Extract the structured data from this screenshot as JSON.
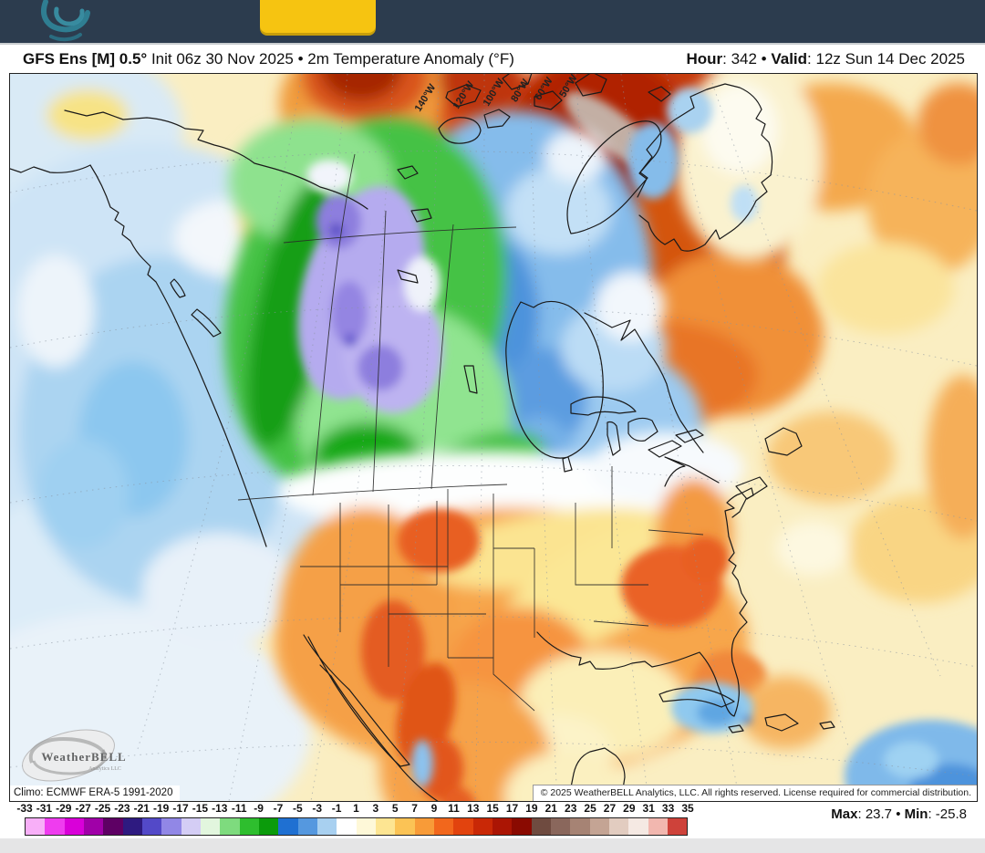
{
  "navbar": {
    "bg_color": "#2c3c4e",
    "button_color": "#f6c411",
    "logo": "weatherbell-swirl-icon"
  },
  "header": {
    "title_bold": "GFS Ens [M] 0.5°",
    "title_rest": " Init 06z 30 Nov 2025 • 2m Temperature Anomaly (°F)",
    "hour_label": "Hour",
    "hour_sep": ": ",
    "hour_value": "342",
    "bullet": " • ",
    "valid_label": "Valid",
    "valid_sep": ": ",
    "valid_value": "12z Sun 14 Dec 2025"
  },
  "map": {
    "lon_labels": [
      "140°W",
      "120°W",
      "100°W",
      "80°W",
      "60°W",
      "50°W"
    ],
    "watermark_title": "WeatherBELL",
    "watermark_sub": "Analytics LLC",
    "climo_text": "Climo: ECMWF ERA-5 1991-2020",
    "copyright_text": "© 2025 WeatherBELL Analytics, LLC. All rights reserved. License required for commercial distribution."
  },
  "colorbar": {
    "tick_labels": [
      "-33",
      "-31",
      "-29",
      "-27",
      "-25",
      "-23",
      "-21",
      "-19",
      "-17",
      "-15",
      "-13",
      "-11",
      "-9",
      "-7",
      "-5",
      "-3",
      "-1",
      "1",
      "3",
      "5",
      "7",
      "9",
      "11",
      "13",
      "15",
      "17",
      "19",
      "21",
      "23",
      "25",
      "27",
      "29",
      "31",
      "33",
      "35"
    ],
    "cell_colors": [
      "#f8aff8",
      "#ef3cef",
      "#d900d9",
      "#a000a8",
      "#5e0064",
      "#2e1a80",
      "#5349c8",
      "#9187e6",
      "#d4cdf5",
      "#e2f6de",
      "#7edb7e",
      "#2ebe2e",
      "#0b9b0b",
      "#1f70d2",
      "#5598df",
      "#a8d0f0",
      "#ffffff",
      "#fef8d8",
      "#fde592",
      "#fbc355",
      "#f89b38",
      "#f2671c",
      "#e2430e",
      "#c92806",
      "#ab1504",
      "#8a0a01",
      "#6f4b40",
      "#8a675c",
      "#a68374",
      "#c4a494",
      "#e2ccc0",
      "#f5e9e3",
      "#f2b7af",
      "#ce423a"
    ],
    "max_label": "Max",
    "max_value": "23.7",
    "bullet": " • ",
    "min_label": "Min",
    "min_value": "-25.8"
  }
}
